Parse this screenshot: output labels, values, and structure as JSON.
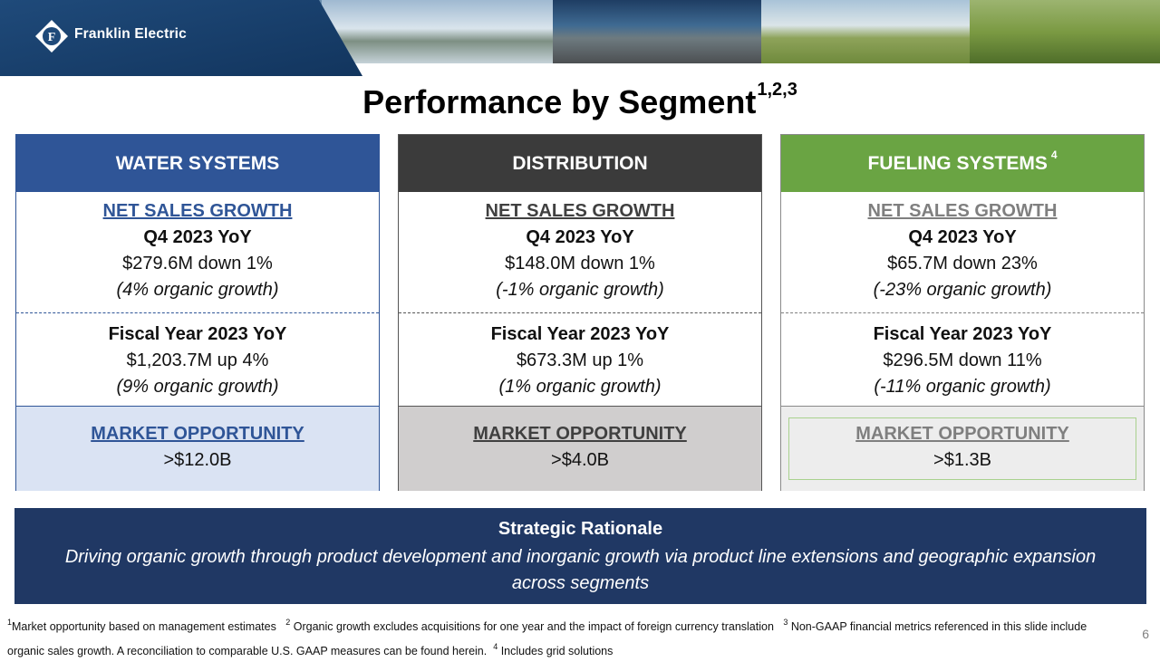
{
  "header": {
    "brand": "Franklin Electric",
    "logo_icon": "franklin-electric-logo-icon"
  },
  "title": {
    "text": "Performance by Segment",
    "superscript": "1,2,3"
  },
  "segments": [
    {
      "name": "WATER SYSTEMS",
      "name_sup": "",
      "q4_title": "NET SALES GROWTH",
      "q4_period": "Q4 2023 YoY",
      "q4_value": "$279.6M down 1%",
      "q4_organic": "(4% organic growth)",
      "fy_period": "Fiscal Year 2023 YoY",
      "fy_value": "$1,203.7M up 4%",
      "fy_organic": "(9% organic growth)",
      "market_title": "MARKET OPPORTUNITY",
      "market_value": ">$12.0B"
    },
    {
      "name": "DISTRIBUTION",
      "name_sup": "",
      "q4_title": "NET SALES GROWTH",
      "q4_period": "Q4 2023 YoY",
      "q4_value": "$148.0M down 1%",
      "q4_organic": "(-1% organic growth)",
      "fy_period": "Fiscal Year 2023 YoY",
      "fy_value": "$673.3M up 1%",
      "fy_organic": "(1% organic growth)",
      "market_title": "MARKET OPPORTUNITY",
      "market_value": ">$4.0B"
    },
    {
      "name": "FUELING SYSTEMS",
      "name_sup": "4",
      "q4_title": "NET SALES GROWTH",
      "q4_period": "Q4 2023 YoY",
      "q4_value": "$65.7M down 23%",
      "q4_organic": "(-23% organic growth)",
      "fy_period": "Fiscal Year 2023 YoY",
      "fy_value": "$296.5M down 11%",
      "fy_organic": "(-11% organic growth)",
      "market_title": "MARKET OPPORTUNITY",
      "market_value": ">$1.3B"
    }
  ],
  "rationale": {
    "title": "Strategic Rationale",
    "text": "Driving organic growth through product development and inorganic growth via product line extensions and geographic expansion across segments"
  },
  "footnotes": {
    "n1_mark": "1",
    "n1_text": "Market opportunity based on management estimates",
    "n2_mark": "2",
    "n2_text": "Organic growth excludes acquisitions for one year and the impact of foreign currency translation",
    "n3_mark": "3",
    "n3_text": "Non-GAAP financial metrics referenced in this slide include organic sales growth.  A reconciliation to comparable U.S. GAAP measures can be found herein.",
    "n4_mark": "4",
    "n4_text": "Includes grid solutions"
  },
  "page_number": "6",
  "colors": {
    "water": "#2f5597",
    "distribution": "#3b3b3b",
    "fueling": "#6aa443",
    "rationale_bg": "#203864"
  }
}
